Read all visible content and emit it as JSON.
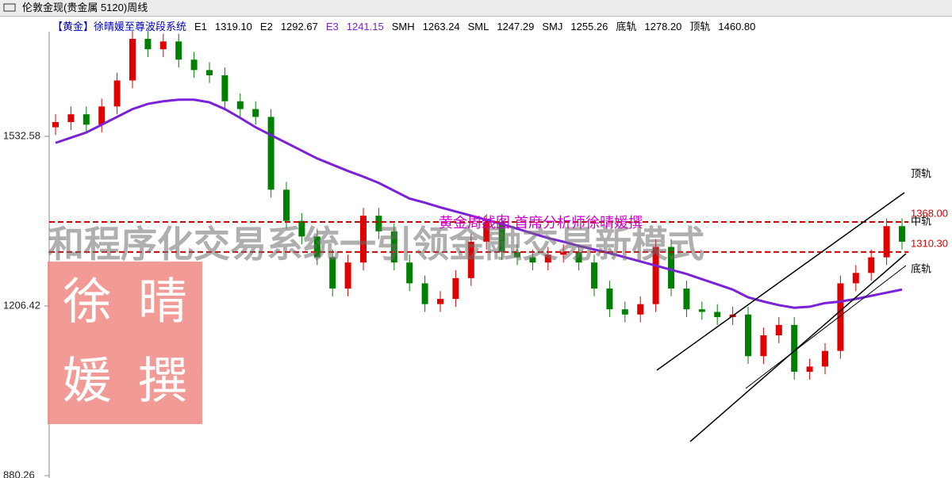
{
  "chart_data": {
    "type": "candlestick",
    "title": "伦敦金现(贵金属 5120)周线",
    "indicator": {
      "name": "【黄金】徐晴媛至尊波段系统",
      "items": [
        {
          "label": "E1",
          "text": "1319.10"
        },
        {
          "label": "E2",
          "text": "1292.67"
        },
        {
          "label": "E3",
          "text": "1241.15"
        },
        {
          "label": "SMH",
          "text": "1263.24"
        },
        {
          "label": "SML",
          "text": "1247.29"
        },
        {
          "label": "SMJ",
          "text": "1255.26"
        },
        {
          "label": "底轨",
          "text": "1278.20"
        },
        {
          "label": "顶轨",
          "text": "1460.80"
        }
      ]
    },
    "ylim": [
      875.69,
      1764.24
    ],
    "yticks": [
      880.26,
      1206.42,
      1532.58
    ],
    "up_color": "#e00000",
    "down_color": "#008000",
    "open": [
      1550,
      1560,
      1575,
      1555,
      1590,
      1640,
      1720,
      1700,
      1715,
      1680,
      1660,
      1650,
      1600,
      1585,
      1570,
      1430,
      1370,
      1340,
      1300,
      1240,
      1290,
      1380,
      1350,
      1290,
      1250,
      1210,
      1220,
      1260,
      1330,
      1368,
      1310,
      1300,
      1290,
      1305,
      1310,
      1290,
      1240,
      1200,
      1190,
      1210,
      1320,
      1240,
      1200,
      1195,
      1185,
      1190,
      1110,
      1150,
      1170,
      1080,
      1090,
      1120,
      1250,
      1270,
      1300,
      1360
    ],
    "high": [
      1575,
      1590,
      1590,
      1605,
      1655,
      1735,
      1735,
      1730,
      1730,
      1695,
      1675,
      1665,
      1615,
      1600,
      1585,
      1445,
      1385,
      1355,
      1315,
      1305,
      1395,
      1395,
      1365,
      1305,
      1265,
      1235,
      1275,
      1345,
      1383,
      1383,
      1325,
      1315,
      1320,
      1325,
      1325,
      1305,
      1255,
      1215,
      1225,
      1335,
      1335,
      1255,
      1215,
      1210,
      1205,
      1205,
      1165,
      1185,
      1185,
      1105,
      1135,
      1265,
      1285,
      1315,
      1375,
      1375
    ],
    "low": [
      1535,
      1545,
      1540,
      1540,
      1575,
      1625,
      1685,
      1685,
      1665,
      1645,
      1635,
      1585,
      1570,
      1555,
      1415,
      1355,
      1325,
      1285,
      1225,
      1225,
      1275,
      1335,
      1275,
      1235,
      1195,
      1195,
      1205,
      1245,
      1315,
      1295,
      1285,
      1275,
      1275,
      1290,
      1275,
      1225,
      1185,
      1175,
      1175,
      1195,
      1225,
      1185,
      1180,
      1170,
      1170,
      1095,
      1095,
      1135,
      1065,
      1065,
      1075,
      1105,
      1235,
      1255,
      1285,
      1315
    ],
    "close": [
      1560,
      1575,
      1555,
      1590,
      1640,
      1720,
      1700,
      1715,
      1680,
      1660,
      1650,
      1600,
      1585,
      1570,
      1430,
      1370,
      1340,
      1300,
      1240,
      1290,
      1380,
      1350,
      1290,
      1250,
      1210,
      1220,
      1260,
      1330,
      1368,
      1310,
      1300,
      1290,
      1305,
      1310,
      1290,
      1240,
      1200,
      1190,
      1210,
      1320,
      1240,
      1200,
      1195,
      1185,
      1190,
      1110,
      1150,
      1170,
      1080,
      1090,
      1120,
      1250,
      1270,
      1300,
      1360,
      1330
    ],
    "ma": {
      "color": "#7b22d8",
      "values": [
        1520,
        1530,
        1540,
        1555,
        1570,
        1585,
        1595,
        1600,
        1603,
        1603,
        1598,
        1585,
        1568,
        1550,
        1535,
        1520,
        1505,
        1490,
        1478,
        1466,
        1455,
        1443,
        1428,
        1413,
        1405,
        1396,
        1388,
        1380,
        1372,
        1364,
        1355,
        1346,
        1337,
        1330,
        1322,
        1315,
        1308,
        1300,
        1292,
        1284,
        1276,
        1268,
        1258,
        1248,
        1238,
        1223,
        1215,
        1208,
        1203,
        1205,
        1212,
        1215,
        1220,
        1226,
        1232,
        1238
      ]
    },
    "levels": [
      {
        "value": 1368,
        "label": "1368.00"
      },
      {
        "value": 1310.3,
        "label": "1310.30"
      }
    ],
    "level_color": "#d00000",
    "band_labels": [
      "顶轨",
      "中轨",
      "底轨"
    ],
    "watermark": "和程序化交易系统一引领金融交易新模式",
    "caption": "黄金周线图  首席分析师徐晴媛撰",
    "stamp": [
      "徐",
      "晴",
      "媛",
      "撰"
    ]
  }
}
